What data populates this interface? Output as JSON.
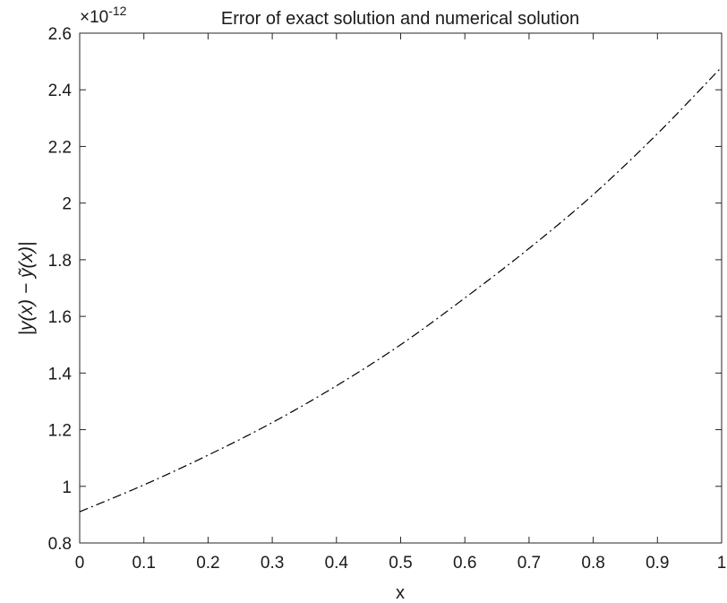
{
  "chart_data": {
    "type": "line",
    "title": "Error of exact solution and numerical solution",
    "xlabel": "x",
    "ylabel": "|y(x) − ỹ(x)|",
    "y_exponent_label": "×10",
    "y_exponent_power": "-12",
    "xlim": [
      0,
      1
    ],
    "ylim": [
      0.8,
      2.6
    ],
    "x_ticks": [
      0,
      0.1,
      0.2,
      0.3,
      0.4,
      0.5,
      0.6,
      0.7,
      0.8,
      0.9,
      1
    ],
    "x_tick_labels": [
      "0",
      "0.1",
      "0.2",
      "0.3",
      "0.4",
      "0.5",
      "0.6",
      "0.7",
      "0.8",
      "0.9",
      "1"
    ],
    "y_ticks": [
      0.8,
      1.0,
      1.2,
      1.4,
      1.6,
      1.8,
      2.0,
      2.2,
      2.4,
      2.6
    ],
    "y_tick_labels": [
      "0.8",
      "1",
      "1.2",
      "1.4",
      "1.6",
      "1.8",
      "2",
      "2.2",
      "2.4",
      "2.6"
    ],
    "grid": false,
    "series": [
      {
        "line_style": "dash-dot",
        "color": "#000000",
        "x": [
          0,
          0.1,
          0.2,
          0.3,
          0.4,
          0.5,
          0.6,
          0.7,
          0.8,
          0.9,
          1.0
        ],
        "y": [
          0.91,
          1.005,
          1.11,
          1.225,
          1.355,
          1.5,
          1.665,
          1.84,
          2.03,
          2.245,
          2.48
        ]
      }
    ]
  }
}
